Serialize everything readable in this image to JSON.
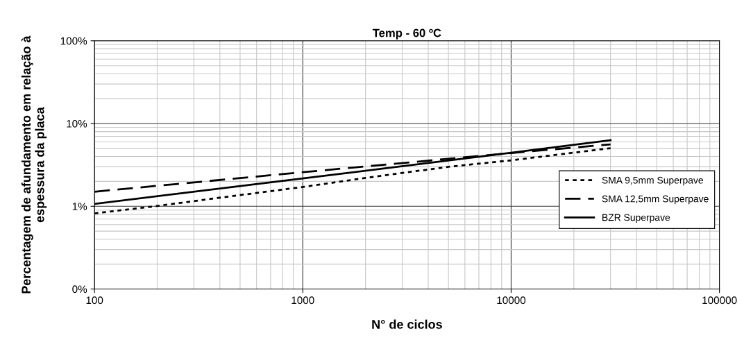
{
  "chart_data": {
    "type": "line",
    "title": "Temp - 60 ºC",
    "xlabel": "N° de ciclos",
    "ylabel": "Percentagem de afundamento em relação à\nespessura da placa",
    "log": "xy",
    "grid": true,
    "legend": "right",
    "marker": "none",
    "xlim": [
      100,
      100000
    ],
    "xticks": [
      100,
      1000,
      10000,
      100000
    ],
    "ylim": [
      0.1,
      100
    ],
    "yticks": [
      {
        "value": 0.1,
        "label": "0%"
      },
      {
        "value": 1,
        "label": "1%"
      },
      {
        "value": 10,
        "label": "10%"
      },
      {
        "value": 100,
        "label": "100%"
      }
    ],
    "series": [
      {
        "name": "SMA 9,5mm Superpave",
        "color": "#000000",
        "line_style": "dotted",
        "x": [
          100,
          195,
          410,
          1000,
          2000,
          5000,
          10000,
          30000
        ],
        "values": [
          0.82,
          1.0,
          1.28,
          1.71,
          2.2,
          3.0,
          3.59,
          5.04
        ]
      },
      {
        "name": "SMA 12,5mm Superpave",
        "color": "#000000",
        "line_style": "dashed",
        "x": [
          100,
          1000,
          10000,
          30000
        ],
        "values": [
          1.5,
          2.58,
          4.4,
          5.6
        ]
      },
      {
        "name": "BZR Superpave",
        "color": "#000000",
        "line_style": "solid",
        "x": [
          100,
          1000,
          10000,
          30000
        ],
        "values": [
          1.07,
          2.17,
          4.44,
          6.3
        ]
      }
    ]
  }
}
